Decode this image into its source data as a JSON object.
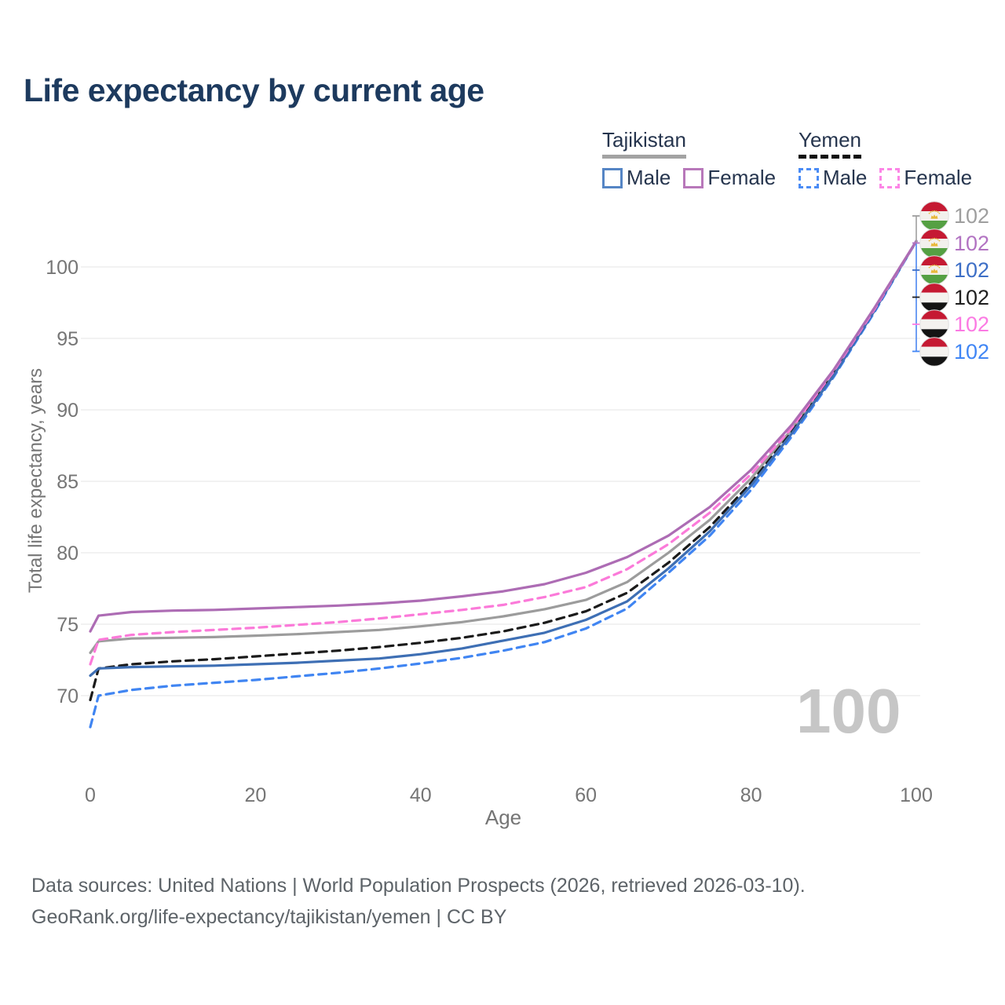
{
  "title": "Life expectancy by current age",
  "watermark": "100",
  "legend": {
    "groups": [
      {
        "country": "Tajikistan",
        "line_color": "#a3a3a3",
        "line_dash": false,
        "items": [
          {
            "label": "Male",
            "color": "#5585c5",
            "dash": false
          },
          {
            "label": "Female",
            "color": "#b878ba",
            "dash": false
          }
        ]
      },
      {
        "country": "Yemen",
        "line_color": "#111111",
        "line_dash": true,
        "items": [
          {
            "label": "Male",
            "color": "#4b8cf5",
            "dash": true
          },
          {
            "label": "Female",
            "color": "#fc86e6",
            "dash": true
          }
        ]
      }
    ]
  },
  "footer": {
    "line1": "Data sources: United Nations | World Population Prospects (2026, retrieved 2026-03-10).",
    "line2": "GeoRank.org/life-expectancy/tajikistan/yemen | CC BY"
  },
  "chart_data": {
    "type": "line",
    "title": "Life expectancy by current age",
    "xlabel": "Age",
    "ylabel": "Total life expectancy, years",
    "xlim": [
      0,
      100
    ],
    "ylim": [
      66,
      103
    ],
    "xticks": [
      0,
      20,
      40,
      60,
      80,
      100
    ],
    "yticks": [
      70,
      75,
      80,
      85,
      90,
      95,
      100
    ],
    "grid": "horizontal-only",
    "legend_position": "top-right",
    "x": [
      0,
      1,
      5,
      10,
      15,
      20,
      25,
      30,
      35,
      40,
      45,
      50,
      55,
      60,
      65,
      70,
      75,
      80,
      85,
      90,
      95,
      100
    ],
    "series": [
      {
        "name": "Tajikistan Both sexes",
        "country": "Tajikistan",
        "sex": "both",
        "color": "#9c9c9c",
        "dashed": false,
        "flag": "tajikistan",
        "end_label": "102",
        "end_label_color": "#9e9e9e",
        "values": [
          73.0,
          73.8,
          74.0,
          74.05,
          74.1,
          74.2,
          74.3,
          74.45,
          74.6,
          74.85,
          75.15,
          75.55,
          76.05,
          76.7,
          77.95,
          80.0,
          82.3,
          85.2,
          88.7,
          92.6,
          97.1,
          101.8
        ]
      },
      {
        "name": "Tajikistan Female",
        "country": "Tajikistan",
        "sex": "female",
        "color": "#ad6cb4",
        "dashed": false,
        "flag": "tajikistan",
        "end_label": "102",
        "end_label_color": "#b273c2",
        "values": [
          74.5,
          75.6,
          75.85,
          75.95,
          76.0,
          76.1,
          76.2,
          76.3,
          76.45,
          76.65,
          76.95,
          77.3,
          77.8,
          78.6,
          79.7,
          81.2,
          83.2,
          85.8,
          89.0,
          92.8,
          97.2,
          101.8
        ]
      },
      {
        "name": "Tajikistan Male",
        "country": "Tajikistan",
        "sex": "male",
        "color": "#3e6fb4",
        "dashed": false,
        "flag": "tajikistan",
        "end_label": "102",
        "end_label_color": "#3c6ec6",
        "values": [
          71.4,
          71.9,
          72.0,
          72.05,
          72.1,
          72.2,
          72.3,
          72.45,
          72.6,
          72.9,
          73.3,
          73.85,
          74.4,
          75.3,
          76.6,
          78.9,
          81.5,
          84.7,
          88.4,
          92.4,
          97.0,
          101.8
        ]
      },
      {
        "name": "Yemen Both sexes",
        "country": "Yemen",
        "sex": "both",
        "color": "#1b1b1b",
        "dashed": true,
        "flag": "yemen",
        "end_label": "102",
        "end_label_color": "#1f1f1f",
        "values": [
          69.7,
          71.9,
          72.2,
          72.4,
          72.55,
          72.75,
          72.95,
          73.15,
          73.4,
          73.7,
          74.05,
          74.5,
          75.1,
          75.9,
          77.2,
          79.3,
          81.8,
          84.9,
          88.5,
          92.5,
          97.0,
          101.8
        ]
      },
      {
        "name": "Yemen Female",
        "country": "Yemen",
        "sex": "female",
        "color": "#fb7ad9",
        "dashed": true,
        "flag": "yemen",
        "end_label": "102",
        "end_label_color": "#fb7ae3",
        "values": [
          72.2,
          73.9,
          74.25,
          74.45,
          74.6,
          74.75,
          74.95,
          75.15,
          75.4,
          75.7,
          76.0,
          76.35,
          76.9,
          77.6,
          78.85,
          80.6,
          82.8,
          85.5,
          88.8,
          92.7,
          97.1,
          101.8
        ]
      },
      {
        "name": "Yemen Male",
        "country": "Yemen",
        "sex": "male",
        "color": "#4085f2",
        "dashed": true,
        "flag": "yemen",
        "end_label": "102",
        "end_label_color": "#4086f5",
        "values": [
          67.8,
          70.0,
          70.4,
          70.7,
          70.9,
          71.1,
          71.35,
          71.6,
          71.9,
          72.25,
          72.65,
          73.15,
          73.75,
          74.7,
          76.1,
          78.6,
          81.2,
          84.4,
          88.2,
          92.3,
          96.9,
          101.8
        ]
      }
    ],
    "colors": {
      "grid": "#e9e9e9",
      "tick_text": "#757575",
      "title_text": "#1d3a5e",
      "legend_text": "#26354e",
      "footer_text": "#5d6368",
      "watermark": "#c6c6c6",
      "leader_top": "#9e9e9e",
      "leader_bottom": "#4b86f0"
    }
  }
}
